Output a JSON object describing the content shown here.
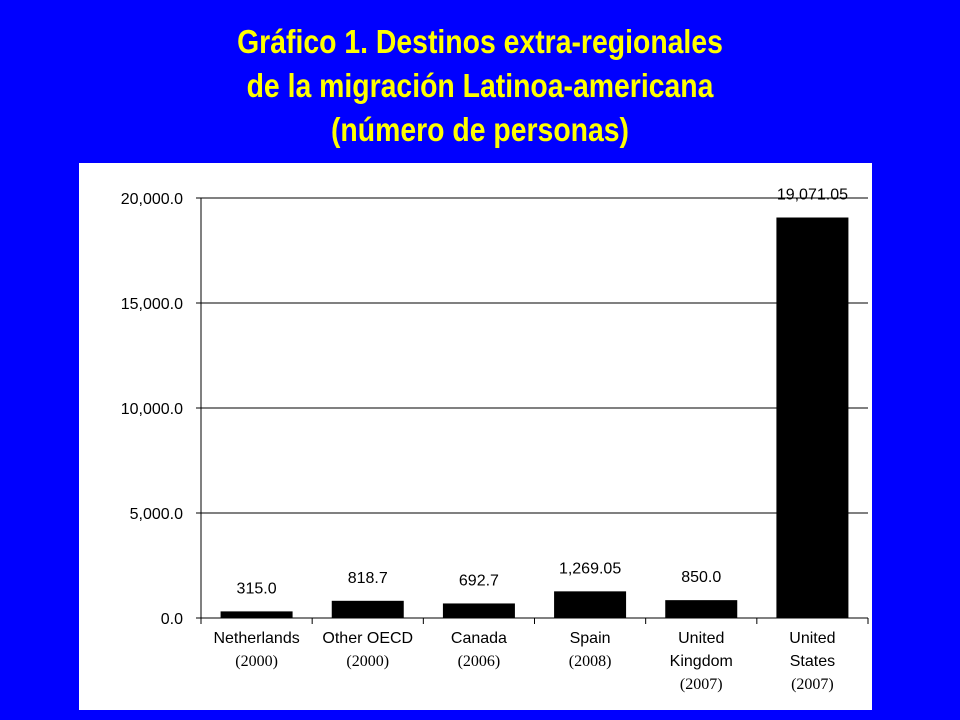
{
  "title_lines": [
    "Gráfico 1. Destinos extra-regionales",
    "de la migración Latinoa-americana",
    "(número de personas)"
  ],
  "colors": {
    "background": "#0000ff",
    "title": "#ffff00",
    "panel": "#ffffff",
    "bar": "#000000"
  },
  "chart_data": {
    "type": "bar",
    "title": "Gráfico 1. Destinos extra-regionales de la migración Latinoa-americana (número de personas)",
    "categories": [
      {
        "lines": [
          "Netherlands"
        ],
        "year": "(2000)"
      },
      {
        "lines": [
          "Other OECD"
        ],
        "year": "(2000)"
      },
      {
        "lines": [
          "Canada"
        ],
        "year": "(2006)"
      },
      {
        "lines": [
          "Spain"
        ],
        "year": "(2008)"
      },
      {
        "lines": [
          "United",
          "Kingdom"
        ],
        "year": "(2007)"
      },
      {
        "lines": [
          "United",
          "States"
        ],
        "year": "(2007)"
      }
    ],
    "values": [
      315.0,
      818.7,
      692.7,
      1269.05,
      850.0,
      19071.05
    ],
    "data_labels": [
      "315.0",
      "818.7",
      "692.7",
      "1,269.05",
      "850.0",
      "19,071.05"
    ],
    "y_ticks": [
      0,
      5000,
      10000,
      15000,
      20000
    ],
    "y_tick_labels": [
      "0.0",
      "5,000.0",
      "10,000.0",
      "15,000.0",
      "20,000.0"
    ],
    "ylim": [
      0,
      20000
    ],
    "xlabel": "",
    "ylabel": "",
    "grid": true,
    "legend": "none"
  }
}
